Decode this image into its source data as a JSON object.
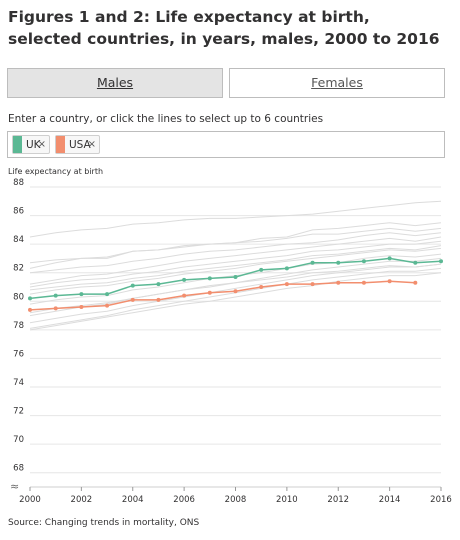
{
  "title": "Figures 1 and 2: Life expectancy at birth, selected countries, in years, males, 2000 to 2016",
  "tabs": [
    {
      "label": "Males",
      "active": true
    },
    {
      "label": "Females",
      "active": false
    }
  ],
  "instruction": "Enter a country, or click the lines to select up to 6 countries",
  "selected_countries": [
    {
      "label": "UK",
      "close": "×",
      "color": "#5bb894"
    },
    {
      "label": "USA",
      "close": "×",
      "color": "#f28e6e"
    }
  ],
  "source": "Source: Changing trends in mortality, ONS",
  "chart_data": {
    "type": "line",
    "ylabel": "Life expectancy at birth",
    "xlabel": "",
    "title": "",
    "xlim": [
      2000,
      2016
    ],
    "ylim": [
      67,
      88
    ],
    "yticks": [
      68,
      70,
      72,
      74,
      76,
      78,
      80,
      82,
      84,
      86,
      88
    ],
    "xticks": [
      2000,
      2002,
      2004,
      2006,
      2008,
      2010,
      2012,
      2014,
      2016
    ],
    "axis_break": "≈",
    "grid": "horizontal",
    "series": [
      {
        "name": "UK",
        "color": "#5bb894",
        "highlight": true,
        "x": [
          2000,
          2001,
          2002,
          2003,
          2004,
          2005,
          2006,
          2007,
          2008,
          2009,
          2010,
          2011,
          2012,
          2013,
          2014,
          2015,
          2016
        ],
        "values": [
          80.2,
          80.4,
          80.5,
          80.5,
          81.1,
          81.2,
          81.5,
          81.6,
          81.7,
          82.2,
          82.3,
          82.7,
          82.7,
          82.8,
          83.0,
          82.7,
          82.8
        ]
      },
      {
        "name": "USA",
        "color": "#f28e6e",
        "highlight": true,
        "x": [
          2000,
          2001,
          2002,
          2003,
          2004,
          2005,
          2006,
          2007,
          2008,
          2009,
          2010,
          2011,
          2012,
          2013,
          2014,
          2015
        ],
        "values": [
          79.4,
          79.5,
          79.6,
          79.7,
          80.1,
          80.1,
          80.4,
          80.6,
          80.7,
          81.0,
          81.2,
          81.2,
          81.3,
          81.3,
          81.4,
          81.3
        ]
      },
      {
        "values": [
          84.5,
          84.8,
          85.0,
          85.1,
          85.4,
          85.5,
          85.7,
          85.8,
          85.8,
          85.9,
          86.0,
          86.1,
          86.3,
          86.5,
          86.7,
          86.9,
          87.0
        ]
      },
      {
        "values": [
          82.3,
          82.7,
          83.0,
          83.0,
          83.5,
          83.6,
          83.9,
          84.0,
          84.1,
          84.4,
          84.5,
          85.0,
          85.1,
          85.3,
          85.5,
          85.3,
          85.5
        ]
      },
      {
        "values": [
          82.7,
          82.9,
          83.0,
          83.1,
          83.5,
          83.6,
          83.8,
          84.0,
          84.1,
          84.2,
          84.4,
          84.7,
          84.7,
          84.9,
          85.1,
          84.9,
          85.1
        ]
      },
      {
        "values": [
          82.0,
          82.2,
          82.4,
          82.5,
          82.8,
          83.0,
          83.3,
          83.5,
          83.6,
          83.8,
          84.0,
          84.1,
          84.3,
          84.6,
          84.8,
          84.6,
          84.8
        ]
      },
      {
        "values": [
          81.2,
          81.5,
          81.8,
          81.9,
          82.2,
          82.5,
          82.8,
          83.0,
          83.2,
          83.4,
          83.6,
          83.8,
          84.0,
          84.2,
          84.4,
          84.2,
          84.5
        ]
      },
      {
        "values": [
          81.0,
          81.3,
          81.5,
          81.6,
          81.9,
          82.1,
          82.4,
          82.6,
          82.8,
          83.0,
          83.2,
          83.5,
          83.6,
          83.8,
          84.0,
          84.0,
          84.2
        ]
      },
      {
        "values": [
          80.8,
          81.0,
          81.2,
          81.3,
          81.6,
          81.8,
          82.1,
          82.3,
          82.5,
          82.7,
          82.9,
          83.2,
          83.3,
          83.5,
          83.7,
          83.6,
          83.9
        ]
      },
      {
        "values": [
          80.5,
          80.8,
          81.0,
          81.1,
          81.4,
          81.6,
          81.9,
          82.1,
          82.3,
          82.6,
          82.8,
          83.0,
          83.2,
          83.4,
          83.6,
          83.5,
          83.7
        ]
      },
      {
        "values": [
          79.8,
          80.1,
          80.3,
          80.4,
          80.8,
          81.0,
          81.3,
          81.6,
          81.8,
          82.0,
          82.3,
          82.6,
          82.7,
          83.0,
          83.2,
          83.1,
          83.3
        ]
      },
      {
        "values": [
          79.0,
          79.3,
          79.6,
          79.8,
          80.2,
          80.5,
          80.8,
          81.1,
          81.3,
          81.6,
          81.9,
          82.2,
          82.4,
          82.6,
          82.8,
          82.8,
          83.0
        ]
      },
      {
        "values": [
          78.5,
          78.8,
          79.1,
          79.3,
          79.7,
          80.0,
          80.3,
          80.6,
          80.9,
          81.2,
          81.5,
          81.8,
          82.0,
          82.2,
          82.4,
          82.4,
          82.6
        ]
      },
      {
        "values": [
          78.1,
          78.4,
          78.7,
          79.0,
          79.4,
          79.7,
          80.0,
          80.3,
          80.6,
          80.9,
          81.2,
          81.5,
          81.7,
          81.9,
          82.1,
          82.1,
          82.3
        ]
      },
      {
        "values": [
          78.0,
          78.3,
          78.6,
          78.9,
          79.2,
          79.5,
          79.8,
          80.0,
          80.3,
          80.6,
          80.9,
          81.1,
          81.4,
          81.6,
          81.8,
          81.8,
          82.0
        ]
      },
      {
        "values": [
          79.2,
          79.5,
          79.7,
          79.9,
          80.2,
          80.5,
          80.8,
          81.0,
          81.3,
          81.5,
          81.7,
          82.0,
          82.1,
          82.3,
          82.5,
          82.4,
          82.6
        ]
      }
    ]
  }
}
